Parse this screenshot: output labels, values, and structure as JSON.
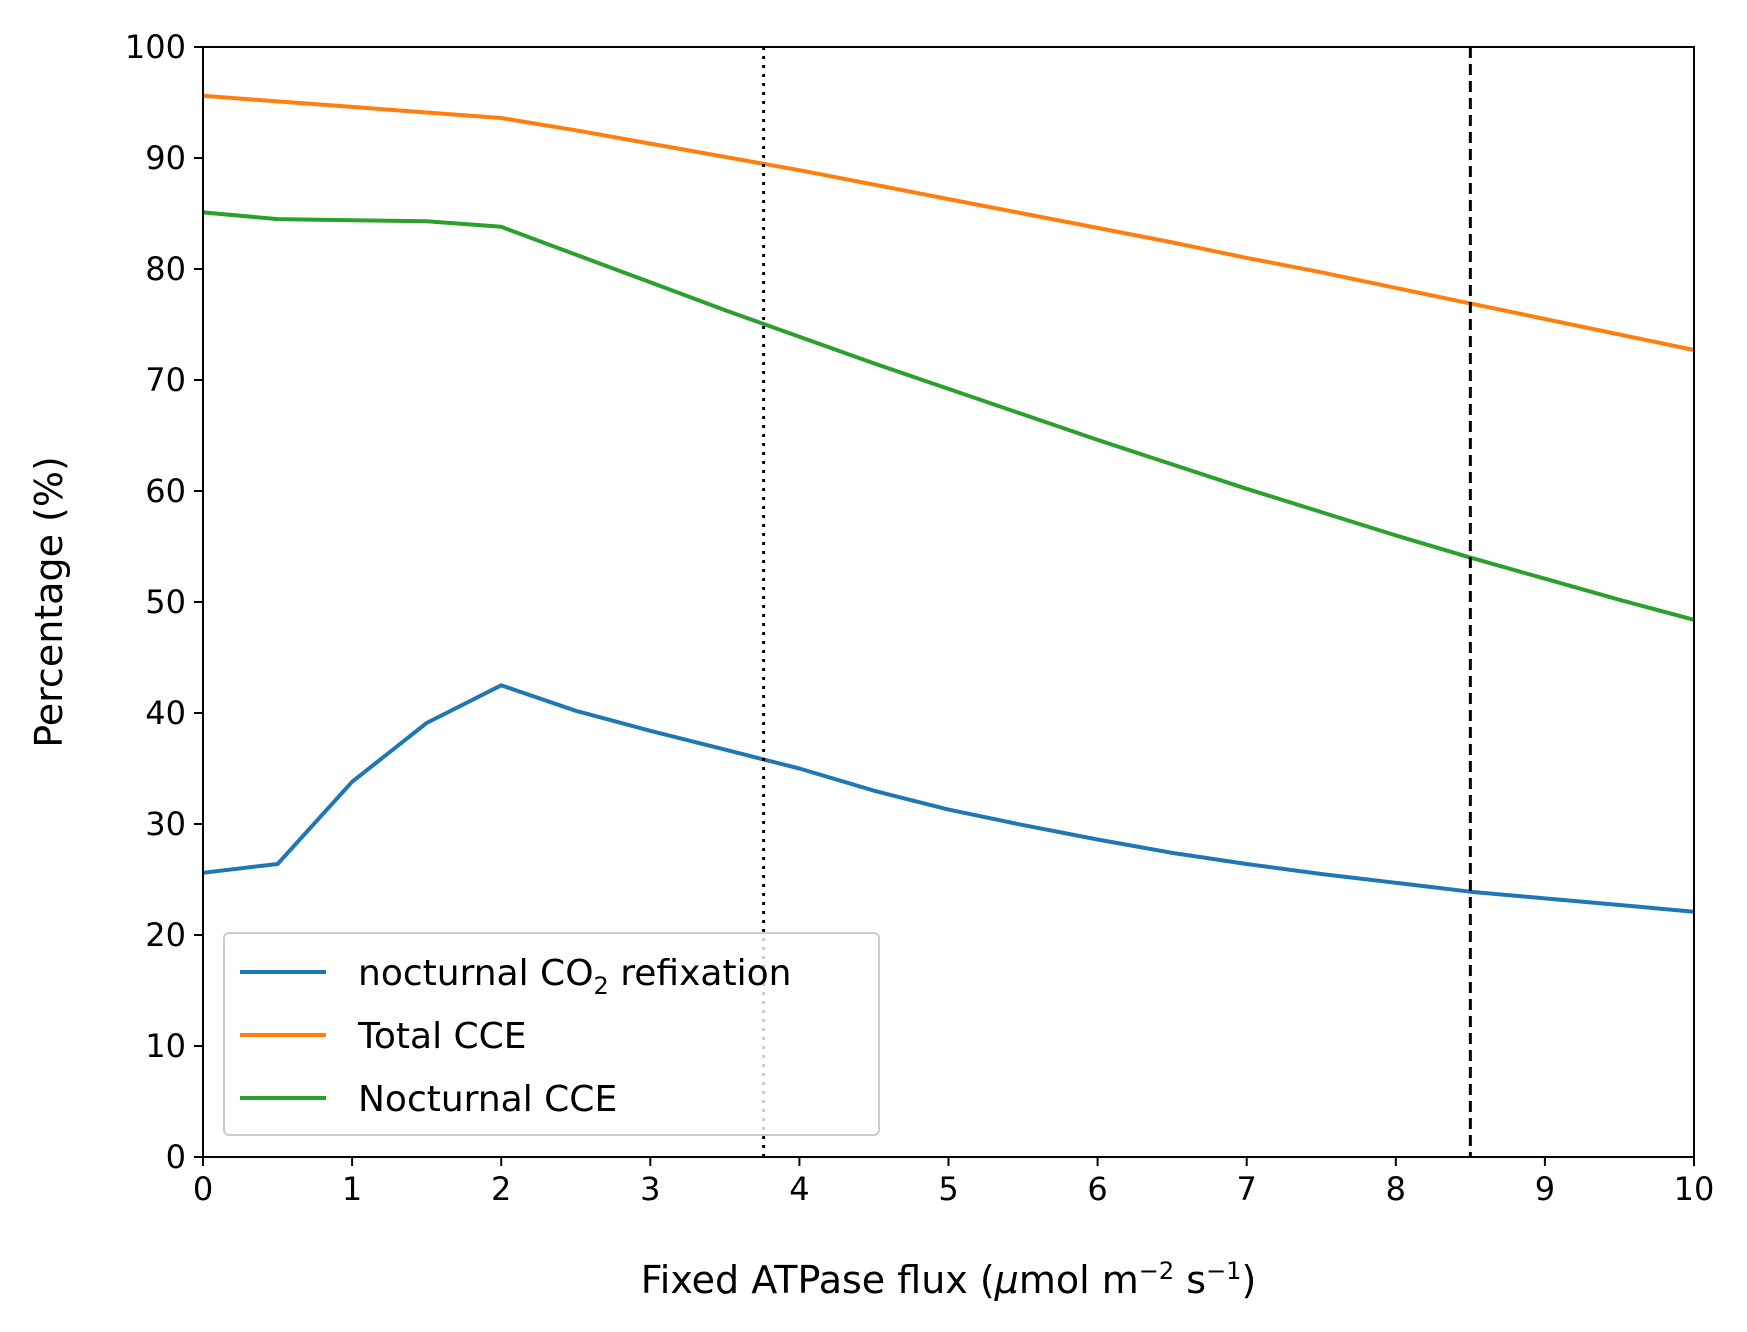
{
  "chart_data": {
    "type": "line",
    "xlabel": {
      "text": "Fixed ATPase flux (",
      "mu": "μ",
      "unit1": "mol m",
      "exp1": "−2",
      "unit2": " s",
      "exp2": "−1",
      "close": ")"
    },
    "ylabel": "Percentage (%)",
    "xlim": [
      0,
      10
    ],
    "ylim": [
      0,
      100
    ],
    "xticks": [
      "0",
      "1",
      "2",
      "3",
      "4",
      "5",
      "6",
      "7",
      "8",
      "9",
      "10"
    ],
    "yticks": [
      "0",
      "10",
      "20",
      "30",
      "40",
      "50",
      "60",
      "70",
      "80",
      "90",
      "100"
    ],
    "grid": false,
    "legend_position": "lower-left",
    "vlines": [
      {
        "x": 3.76,
        "style": "dotted"
      },
      {
        "x": 8.5,
        "style": "dashed"
      }
    ],
    "series": [
      {
        "name": "nocturnal CO2 refixation",
        "legend": {
          "pre": "nocturnal CO",
          "sub": "2",
          "post": " refixation"
        },
        "color": "#1f77b4",
        "x": [
          0,
          0.5,
          1,
          1.5,
          2,
          2.5,
          3,
          3.5,
          4,
          4.5,
          5,
          5.5,
          6,
          6.5,
          7,
          7.5,
          8,
          8.5,
          9,
          9.5,
          10
        ],
        "y": [
          25.6,
          26.4,
          33.8,
          39.1,
          42.5,
          40.2,
          38.4,
          36.7,
          35.0,
          33.0,
          31.3,
          29.9,
          28.6,
          27.4,
          26.4,
          25.5,
          24.7,
          23.9,
          23.3,
          22.7,
          22.1
        ]
      },
      {
        "name": "Total CCE",
        "color": "#ff7f0e",
        "x": [
          0,
          0.5,
          1,
          1.5,
          2,
          2.5,
          3,
          3.5,
          4,
          4.5,
          5,
          5.5,
          6,
          6.5,
          7,
          7.5,
          8,
          8.5,
          9,
          9.5,
          10
        ],
        "y": [
          95.6,
          95.1,
          94.6,
          94.1,
          93.6,
          92.5,
          91.3,
          90.1,
          88.9,
          87.6,
          86.3,
          85.0,
          83.7,
          82.4,
          81.0,
          79.7,
          78.3,
          76.9,
          75.5,
          74.1,
          72.7
        ]
      },
      {
        "name": "Nocturnal CCE",
        "color": "#2ca02c",
        "x": [
          0,
          0.5,
          1,
          1.5,
          2,
          2.5,
          3,
          3.5,
          4,
          4.5,
          5,
          5.5,
          6,
          6.5,
          7,
          7.5,
          8,
          8.5,
          9,
          9.5,
          10
        ],
        "y": [
          85.1,
          84.5,
          84.4,
          84.3,
          83.8,
          81.3,
          78.8,
          76.3,
          73.9,
          71.5,
          69.2,
          66.9,
          64.6,
          62.4,
          60.2,
          58.1,
          56.0,
          54.0,
          52.1,
          50.2,
          48.4
        ]
      }
    ]
  }
}
